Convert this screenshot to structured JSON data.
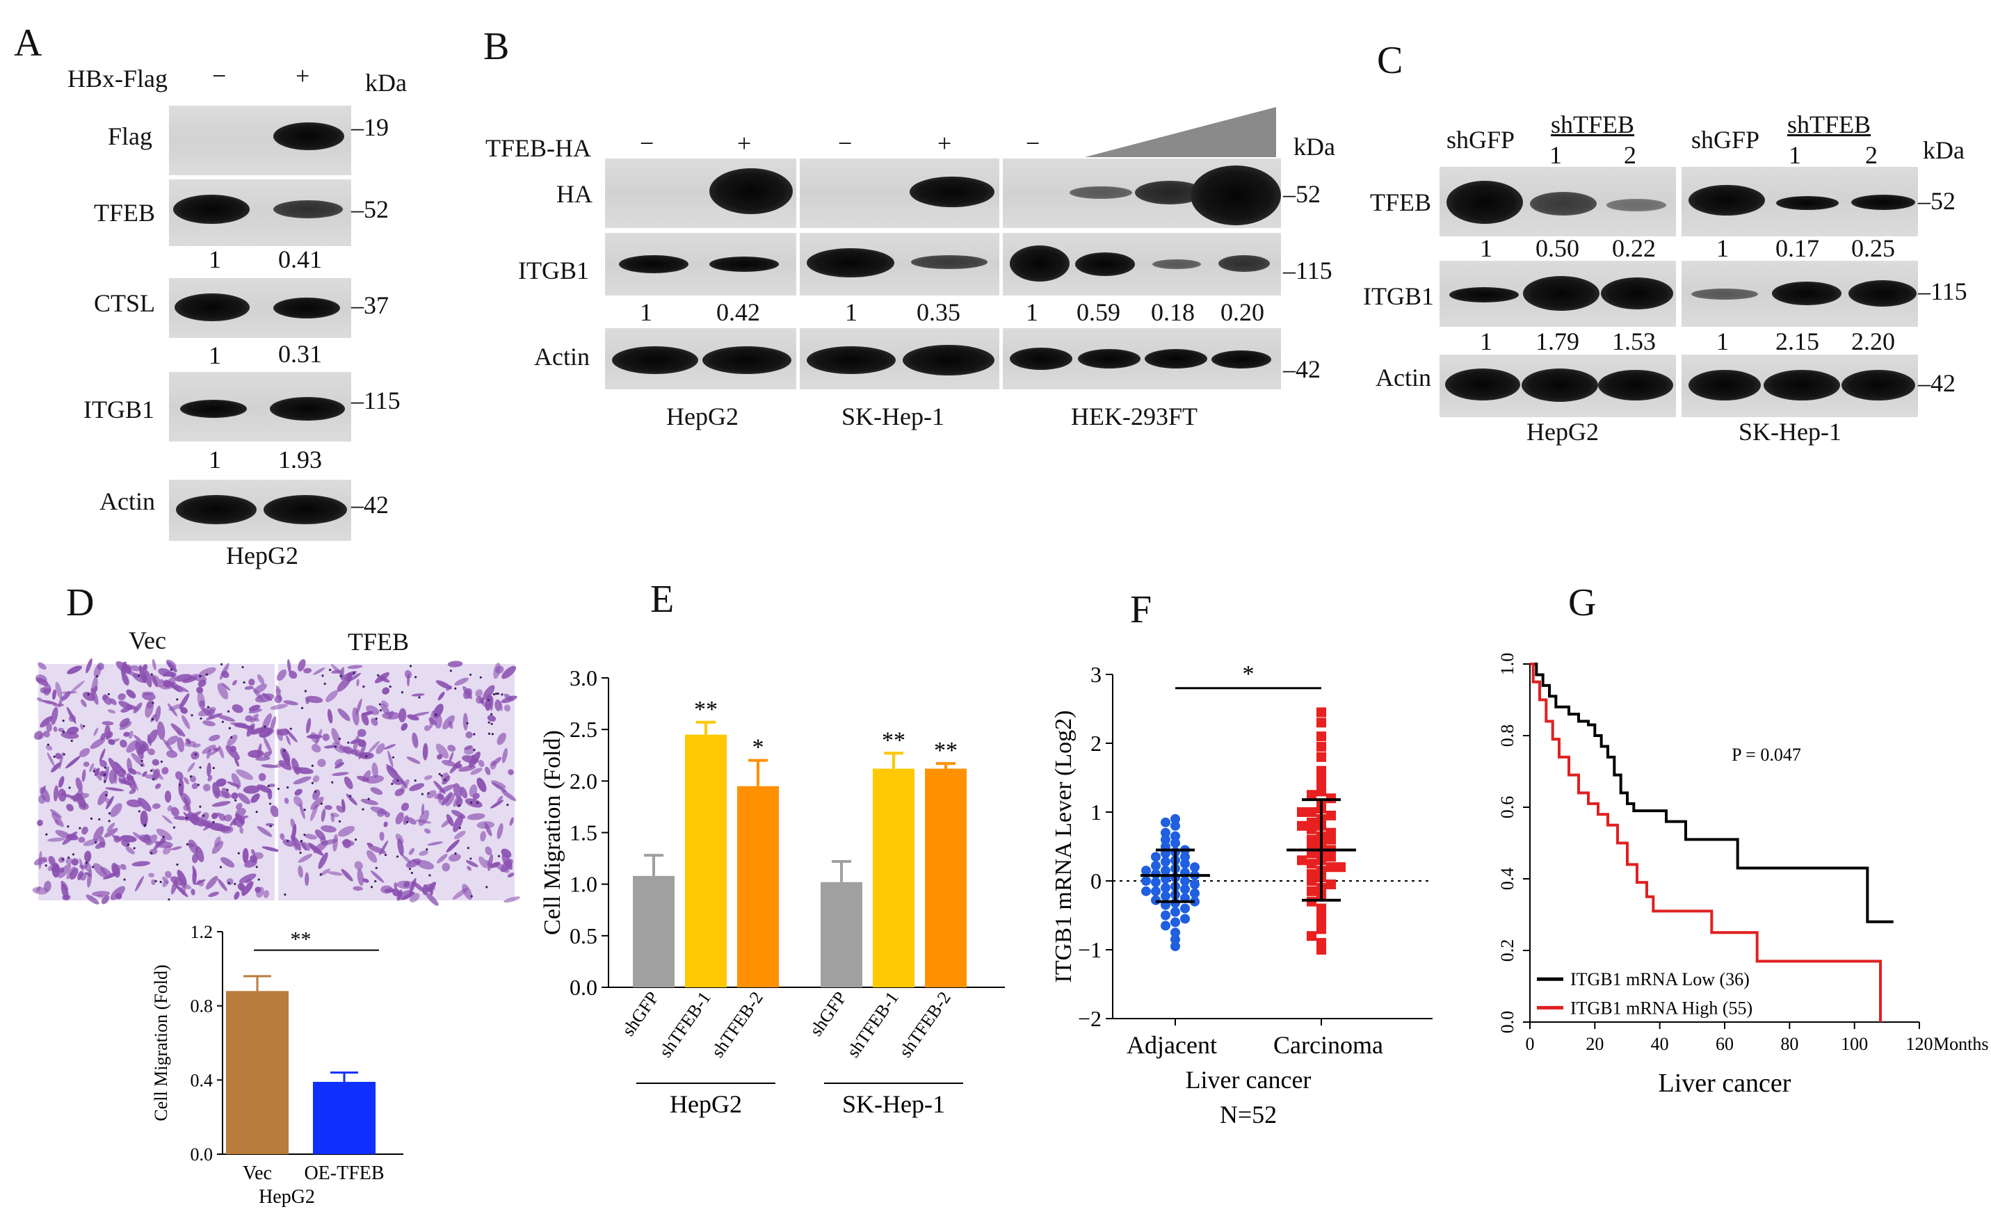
{
  "panels": {
    "A": {
      "label": "A",
      "condition_label": "HBx-Flag",
      "conditions": [
        "−",
        "+"
      ],
      "kda": "kDa",
      "rows": [
        {
          "name": "Flag",
          "marker": "19",
          "quant": []
        },
        {
          "name": "TFEB",
          "marker": "52",
          "quant": [
            "1",
            "0.41"
          ]
        },
        {
          "name": "CTSL",
          "marker": "37",
          "quant": [
            "1",
            "0.31"
          ]
        },
        {
          "name": "ITGB1",
          "marker": "115",
          "quant": [
            "1",
            "1.93"
          ]
        },
        {
          "name": "Actin",
          "marker": "42",
          "quant": []
        }
      ],
      "cell_line": "HepG2"
    },
    "B": {
      "label": "B",
      "condition_label": "TFEB-HA",
      "signs": [
        "−",
        "+",
        "−",
        "+",
        "−"
      ],
      "kda": "kDa",
      "rows": [
        {
          "name": "HA",
          "marker": "52"
        },
        {
          "name": "ITGB1",
          "marker": "115"
        },
        {
          "name": "Actin",
          "marker": "42"
        }
      ],
      "quant": [
        "1",
        "0.42",
        "1",
        "0.35",
        "1",
        "0.59",
        "0.18",
        "0.20"
      ],
      "cell_lines": [
        "HepG2",
        "SK-Hep-1",
        "HEK-293FT"
      ]
    },
    "C": {
      "label": "C",
      "groups": [
        {
          "control": "shGFP",
          "sh": "shTFEB",
          "nums": [
            "1",
            "2"
          ],
          "cell_line": "HepG2",
          "tfeb_quant": [
            "1",
            "0.50",
            "0.22"
          ],
          "itgb1_quant": [
            "1",
            "1.79",
            "1.53"
          ]
        },
        {
          "control": "shGFP",
          "sh": "shTFEB",
          "nums": [
            "1",
            "2"
          ],
          "cell_line": "SK-Hep-1",
          "tfeb_quant": [
            "1",
            "0.17",
            "0.25"
          ],
          "itgb1_quant": [
            "1",
            "2.15",
            "2.20"
          ]
        }
      ],
      "kda": "kDa",
      "rows": [
        {
          "name": "TFEB",
          "marker": "52"
        },
        {
          "name": "ITGB1",
          "marker": "115"
        },
        {
          "name": "Actin",
          "marker": "42"
        }
      ]
    },
    "D": {
      "label": "D",
      "image_labels": [
        "Vec",
        "TFEB"
      ],
      "sig": "**",
      "cell_line": "HepG2"
    },
    "E": {
      "label": "E",
      "sig_hepg2": [
        "**",
        "*"
      ],
      "sig_skhep": [
        "**",
        "**"
      ],
      "group_labels": [
        "HepG2",
        "SK-Hep-1"
      ]
    },
    "F": {
      "label": "F",
      "sig": "*",
      "group_caption": "Liver cancer",
      "n_label": "N=52"
    },
    "G": {
      "label": "G",
      "p_value": "P = 0.047",
      "x_unit": "Months"
    }
  },
  "chart_data": [
    {
      "type": "bar",
      "panel": "D",
      "categories": [
        "Vec",
        "OE-TFEB"
      ],
      "values": [
        0.88,
        0.39
      ],
      "errors": [
        0.08,
        0.05
      ],
      "ylabel": "Cell Migration (Fold)",
      "xlabel": "HepG2",
      "ylim": [
        0,
        1.2
      ],
      "yticks": [
        "0.0",
        "0.4",
        "0.8",
        "1.2"
      ],
      "colors": [
        "#b87c3c",
        "#1030ff"
      ]
    },
    {
      "type": "bar",
      "panel": "E",
      "categories": [
        "shGFP",
        "shTFEB-1",
        "shTFEB-2",
        "shGFP",
        "shTFEB-1",
        "shTFEB-2"
      ],
      "values": [
        1.08,
        2.45,
        1.95,
        1.02,
        2.12,
        2.12
      ],
      "errors": [
        0.2,
        0.12,
        0.25,
        0.2,
        0.15,
        0.05
      ],
      "ylabel": "Cell Migration (Fold)",
      "ylim": [
        0,
        3.0
      ],
      "yticks": [
        "0.0",
        "0.5",
        "1.0",
        "1.5",
        "2.0",
        "2.5",
        "3.0"
      ],
      "colors": [
        "#a0a0a0",
        "#ffc800",
        "#ff9000",
        "#a0a0a0",
        "#ffc800",
        "#ff9000"
      ]
    },
    {
      "type": "scatter",
      "panel": "F",
      "categories": [
        "Adjacent",
        "Carcinoma"
      ],
      "ylabel": "ITGB1 mRNA Lever (Log2)",
      "ylim": [
        -2,
        3
      ],
      "yticks": [
        "−2",
        "−1",
        "0",
        "1",
        "2",
        "3"
      ],
      "series": [
        {
          "name": "Adjacent",
          "mean": 0.08,
          "sd_low": -0.3,
          "sd_high": 0.45,
          "color": "#1f5fe0",
          "values": [
            0.9,
            0.85,
            0.8,
            0.7,
            0.65,
            0.6,
            0.55,
            0.5,
            0.45,
            0.42,
            0.4,
            0.35,
            0.3,
            0.28,
            0.25,
            0.22,
            0.2,
            0.18,
            0.15,
            0.12,
            0.1,
            0.08,
            0.05,
            0.03,
            0.0,
            -0.02,
            -0.05,
            -0.08,
            -0.1,
            -0.12,
            -0.15,
            -0.18,
            -0.2,
            -0.22,
            -0.25,
            -0.28,
            -0.3,
            -0.32,
            -0.35,
            -0.4,
            -0.45,
            -0.5,
            -0.55,
            -0.6,
            -0.65,
            -0.75,
            -0.85,
            -0.95,
            0.35,
            0.15,
            -0.15,
            0.0
          ]
        },
        {
          "name": "Carcinoma",
          "mean": 0.45,
          "sd_low": -0.28,
          "sd_high": 1.18,
          "color": "#e82020",
          "values": [
            2.45,
            2.3,
            2.1,
            1.95,
            1.8,
            1.6,
            1.5,
            1.4,
            1.3,
            1.25,
            1.2,
            1.1,
            1.05,
            1.0,
            0.95,
            0.9,
            0.85,
            0.8,
            0.75,
            0.7,
            0.65,
            0.6,
            0.55,
            0.5,
            0.45,
            0.42,
            0.4,
            0.35,
            0.3,
            0.25,
            0.2,
            0.15,
            0.1,
            0.05,
            0.0,
            -0.05,
            -0.1,
            -0.15,
            -0.2,
            -0.3,
            -0.4,
            -0.5,
            -0.6,
            -0.7,
            -0.8,
            -0.9,
            -1.0,
            0.6,
            0.3,
            0.8,
            0.2,
            1.0
          ]
        }
      ]
    },
    {
      "type": "line",
      "panel": "G",
      "xlabel": "Liver cancer",
      "xlim": [
        0,
        120
      ],
      "ylim": [
        0,
        1.0
      ],
      "xticks": [
        "0",
        "20",
        "40",
        "60",
        "80",
        "100",
        "120"
      ],
      "yticks": [
        "0.0",
        "0.2",
        "0.4",
        "0.6",
        "0.8",
        "1.0"
      ],
      "legend_position": "bottom-left",
      "series": [
        {
          "name": "ITGB1 mRNA Low (36)",
          "color": "#000000",
          "x": [
            0,
            2,
            4,
            6,
            8,
            12,
            15,
            18,
            20,
            22,
            24,
            26,
            28,
            30,
            32,
            36,
            38,
            42,
            48,
            58,
            64,
            70,
            80,
            94,
            100,
            104,
            112
          ],
          "y": [
            1.0,
            0.97,
            0.94,
            0.91,
            0.88,
            0.86,
            0.84,
            0.83,
            0.8,
            0.77,
            0.74,
            0.69,
            0.64,
            0.61,
            0.59,
            0.59,
            0.59,
            0.56,
            0.51,
            0.51,
            0.43,
            0.43,
            0.43,
            0.43,
            0.43,
            0.28,
            0.28
          ]
        },
        {
          "name": "ITGB1 mRNA High (55)",
          "color": "#e02020",
          "x": [
            0,
            1,
            3,
            5,
            7,
            9,
            12,
            15,
            18,
            21,
            24,
            27,
            30,
            33,
            36,
            38,
            46,
            56,
            62,
            70,
            80,
            90,
            100,
            107,
            108
          ],
          "y": [
            1.0,
            0.95,
            0.9,
            0.84,
            0.79,
            0.74,
            0.69,
            0.64,
            0.61,
            0.58,
            0.55,
            0.5,
            0.44,
            0.39,
            0.35,
            0.31,
            0.31,
            0.25,
            0.25,
            0.17,
            0.17,
            0.17,
            0.17,
            0.17,
            0.0
          ]
        }
      ]
    }
  ]
}
